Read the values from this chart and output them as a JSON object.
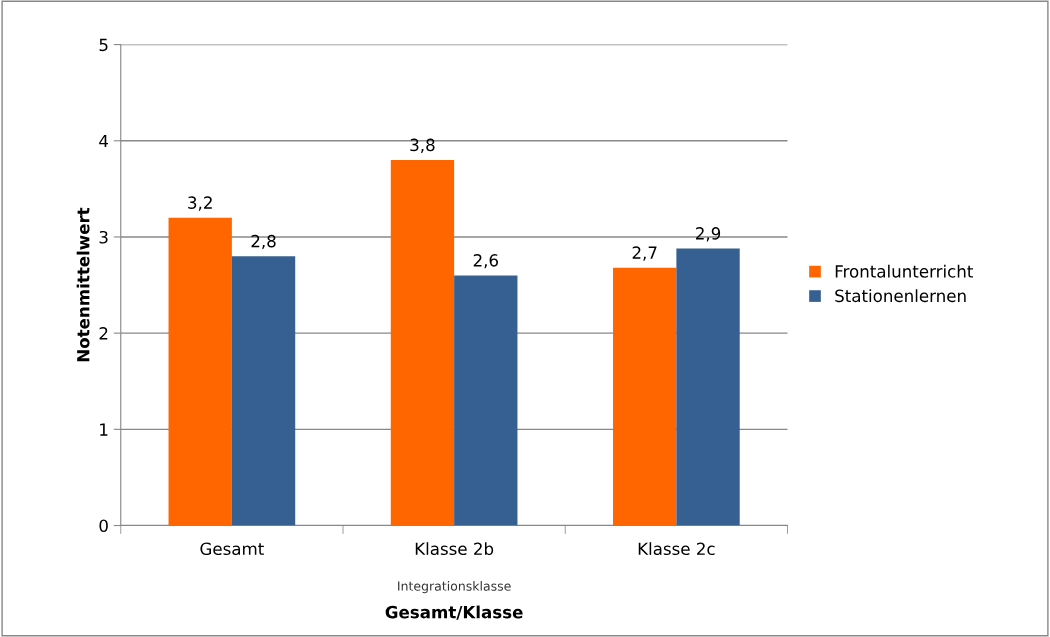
{
  "chart_data": {
    "type": "bar",
    "xlabel": "Gesamt/Klasse",
    "ylabel": "Notenmittelwert",
    "categories": [
      "Gesamt",
      "Klasse 2b",
      "Klasse 2c"
    ],
    "series": [
      {
        "name": "Frontalunterricht",
        "color": "#ff6600",
        "values": [
          3.2,
          3.8,
          2.68
        ],
        "value_labels": [
          "3,2",
          "3,8",
          "2,7"
        ]
      },
      {
        "name": "Stationenlernen",
        "color": "#376092",
        "values": [
          2.8,
          2.6,
          2.88
        ],
        "value_labels": [
          "2,8",
          "2,6",
          "2,9"
        ]
      }
    ],
    "annotations": [
      "Integrationsklasse"
    ],
    "ylim": [
      0,
      5
    ],
    "yticks": [
      0,
      1,
      2,
      3,
      4,
      5
    ],
    "grid": "y",
    "legend": "right"
  }
}
